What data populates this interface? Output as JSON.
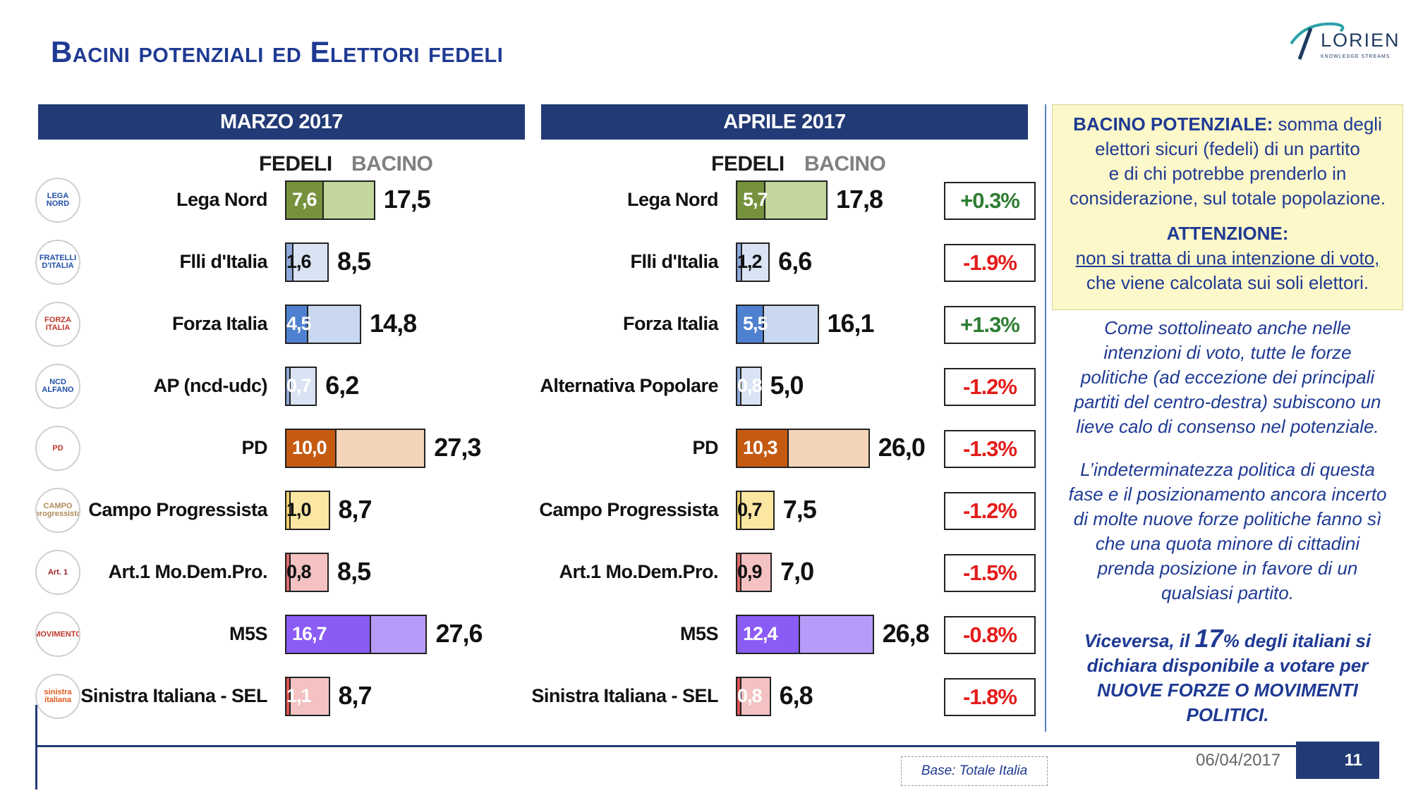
{
  "title": "Bacini potenziali ed Elettori fedeli",
  "logo": {
    "name": "LORIEN",
    "tagline": "KNOWLEDGE STREAMS"
  },
  "panels": {
    "left": {
      "label": "MARZO 2017",
      "fedeli_label": "FEDELI",
      "bacino_label": "BACINO"
    },
    "right": {
      "label": "APRILE 2017",
      "fedeli_label": "FEDELI",
      "bacino_label": "BACINO"
    }
  },
  "party_icons": [
    {
      "icon": "lega-nord-logo",
      "text": "LEGA NORD",
      "color": "#1f4fa8"
    },
    {
      "icon": "fratelli-italia-logo",
      "text": "FRATELLI D'ITALIA",
      "color": "#1f4fa8"
    },
    {
      "icon": "forza-italia-logo",
      "text": "FORZA ITALIA",
      "color": "#c0392b"
    },
    {
      "icon": "ncd-alfano-logo",
      "text": "NCD ALFANO",
      "color": "#1f4fa8"
    },
    {
      "icon": "pd-logo",
      "text": "PD",
      "color": "#c0392b"
    },
    {
      "icon": "campo-progressista-logo",
      "text": "CAMPO progressista",
      "color": "#b08b5a"
    },
    {
      "icon": "art1-logo",
      "text": "Art. 1",
      "color": "#9b1c1c"
    },
    {
      "icon": "m5s-logo",
      "text": "MOVIMENTO",
      "color": "#c0392b"
    },
    {
      "icon": "sinistra-italiana-logo",
      "text": "sinistra italiana",
      "color": "#e05a1c"
    }
  ],
  "chart_data": [
    {
      "type": "bar",
      "title": "MARZO 2017",
      "categories": [
        "Lega Nord",
        "Flli d'Italia",
        "Forza Italia",
        "AP (ncd-udc)",
        "PD",
        "Campo Progressista",
        "Art.1 Mo.Dem.Pro.",
        "M5S",
        "Sinistra Italiana - SEL"
      ],
      "series": [
        {
          "name": "FEDELI",
          "values": [
            7.6,
            1.6,
            4.5,
            0.7,
            10.0,
            1.0,
            0.8,
            16.7,
            1.1
          ],
          "labels": [
            "7,6",
            "1,6",
            "4,5",
            "0,7",
            "10,0",
            "1,0",
            "0,8",
            "16,7",
            "1,1"
          ]
        },
        {
          "name": "BACINO",
          "values": [
            17.5,
            8.5,
            14.8,
            6.2,
            27.3,
            8.7,
            8.5,
            27.6,
            8.7
          ],
          "labels": [
            "17,5",
            "8,5",
            "14,8",
            "6,2",
            "27,3",
            "8,7",
            "8,5",
            "27,6",
            "8,7"
          ]
        }
      ]
    },
    {
      "type": "bar",
      "title": "APRILE 2017",
      "categories": [
        "Lega Nord",
        "Flli d'Italia",
        "Forza Italia",
        "Alternativa Popolare",
        "PD",
        "Campo Progressista",
        "Art.1 Mo.Dem.Pro.",
        "M5S",
        "Sinistra Italiana - SEL"
      ],
      "series": [
        {
          "name": "FEDELI",
          "values": [
            5.7,
            1.2,
            5.5,
            0.8,
            10.3,
            0.7,
            0.9,
            12.4,
            0.8
          ],
          "labels": [
            "5,7",
            "1,2",
            "5,5",
            "0,8",
            "10,3",
            "0,7",
            "0,9",
            "12,4",
            "0,8"
          ]
        },
        {
          "name": "BACINO",
          "values": [
            17.8,
            6.6,
            16.1,
            5.0,
            26.0,
            7.5,
            7.0,
            26.8,
            6.8
          ],
          "labels": [
            "17,8",
            "6,6",
            "16,1",
            "5,0",
            "26,0",
            "7,5",
            "7,0",
            "26,8",
            "6,8"
          ]
        }
      ],
      "differences": [
        "+0.3%",
        "-1.9%",
        "+1.3%",
        "-1.2%",
        "-1.3%",
        "-1.2%",
        "-1.5%",
        "-0.8%",
        "-1.8%"
      ]
    }
  ],
  "colors": {
    "fedeli": [
      "#76923c",
      "#8ea9db",
      "#4f81d1",
      "#8ea9db",
      "#c55a11",
      "#f2d26b",
      "#e06b6b",
      "#8a5cf5",
      "#e05252"
    ],
    "bacino": [
      "#c3d69b",
      "#dae3f3",
      "#c9d8f0",
      "#dae3f3",
      "#f3d4b8",
      "#fbe6a2",
      "#f4c2c2",
      "#b89bf8",
      "#f4c2c2"
    ],
    "fedeli_dark_text": [
      false,
      true,
      false,
      false,
      false,
      true,
      true,
      false,
      false
    ],
    "positive": "#2e7d32",
    "negative": "#e41b1b"
  },
  "info": {
    "heading": "BACINO POTENZIALE:",
    "line1": "somma degli",
    "line2": "elettori sicuri (fedeli) di un partito",
    "line3": "e di chi potrebbe prenderlo in",
    "line4": "considerazione, sul totale popolazione.",
    "attention": "ATTENZIONE:",
    "att_line1": "non si tratta di una intenzione di voto,",
    "att_line2": "che viene calcolata sui soli elettori."
  },
  "commentary1": [
    "Come sottolineato anche nelle",
    "intenzioni di voto, tutte le forze",
    "politiche (ad eccezione dei principali",
    "partiti del centro-destra) subiscono un",
    "lieve calo di consenso nel potenziale."
  ],
  "commentary2": [
    "L’indeterminatezza politica di questa",
    "fase e il posizionamento ancora incerto",
    "di molte nuove forze politiche fanno sì",
    "che una quota minore di cittadini",
    "prenda posizione in favore di un",
    "qualsiasi partito."
  ],
  "commentary3": {
    "pre": "Viceversa, il ",
    "big": "17",
    "post": "% degli italiani si",
    "line2": "dichiara disponibile a votare per",
    "line3": "NUOVE FORZE O MOVIMENTI",
    "line4": "POLITICI."
  },
  "footer": {
    "base": "Base: Totale Italia",
    "date": "06/04/2017",
    "page": "11"
  }
}
